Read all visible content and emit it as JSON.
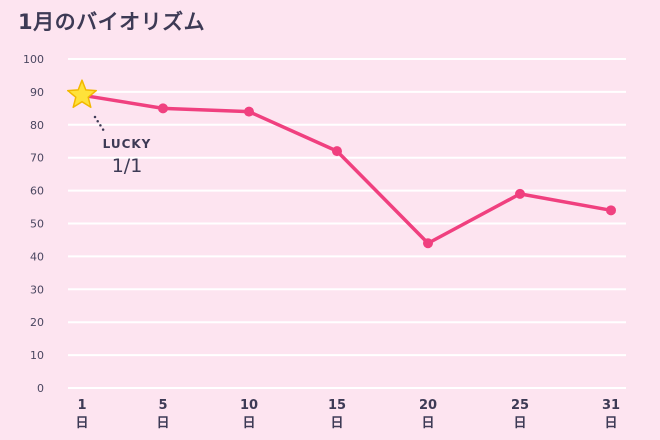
{
  "chart_data": {
    "type": "line",
    "title": "1月のバイオリズム",
    "x": [
      1,
      5,
      10,
      15,
      20,
      25,
      31
    ],
    "x_labels": [
      "1",
      "5",
      "10",
      "15",
      "20",
      "25",
      "31"
    ],
    "x_unit": "日",
    "series": [
      {
        "values": [
          89,
          85,
          84,
          72,
          44,
          59,
          54
        ]
      }
    ],
    "ylim": [
      0,
      100
    ],
    "yticks": [
      0,
      10,
      20,
      30,
      40,
      50,
      60,
      70,
      80,
      90,
      100
    ],
    "grid": true,
    "annotation": {
      "label": "LUCKY",
      "date": "1/1",
      "marker": "star-icon"
    },
    "colors": {
      "line": "#f0407f",
      "star": "#ffe23a",
      "star_stroke": "#f2b800",
      "grid": "#ffffff",
      "text": "#3d3a55"
    }
  }
}
